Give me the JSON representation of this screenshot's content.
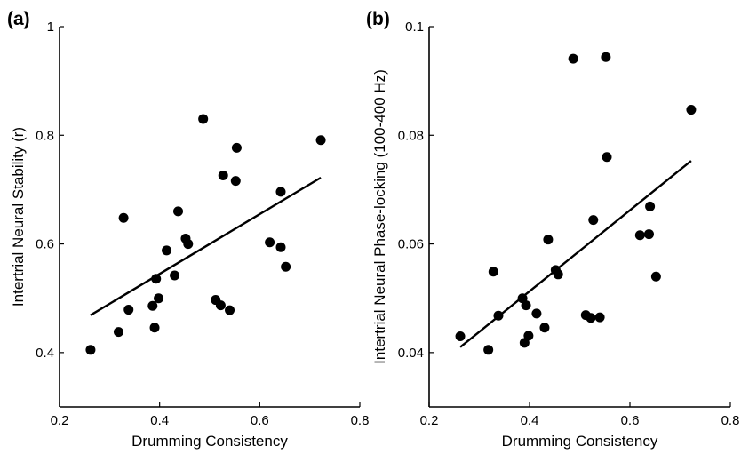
{
  "chart_data": [
    {
      "type": "scatter",
      "panel_label": "(a)",
      "xlabel": "Drumming Consistency",
      "ylabel": "Intertrial Neural Stability (r)",
      "xlim": [
        0.2,
        0.8
      ],
      "ylim": [
        0.3,
        1.0
      ],
      "xticks": [
        "0.2",
        "0.4",
        "0.6",
        "0.8"
      ],
      "xtick_values": [
        0.2,
        0.4,
        0.6,
        0.8
      ],
      "yticks": [
        "0.4",
        "0.6",
        "0.8",
        "1"
      ],
      "ytick_values": [
        0.4,
        0.6,
        0.8,
        1.0
      ],
      "points": [
        [
          0.262,
          0.405
        ],
        [
          0.318,
          0.438
        ],
        [
          0.328,
          0.648
        ],
        [
          0.338,
          0.479
        ],
        [
          0.386,
          0.486
        ],
        [
          0.39,
          0.446
        ],
        [
          0.393,
          0.536
        ],
        [
          0.398,
          0.5
        ],
        [
          0.414,
          0.588
        ],
        [
          0.43,
          0.542
        ],
        [
          0.437,
          0.66
        ],
        [
          0.452,
          0.61
        ],
        [
          0.457,
          0.6
        ],
        [
          0.487,
          0.83
        ],
        [
          0.512,
          0.497
        ],
        [
          0.522,
          0.487
        ],
        [
          0.527,
          0.726
        ],
        [
          0.54,
          0.478
        ],
        [
          0.552,
          0.716
        ],
        [
          0.554,
          0.777
        ],
        [
          0.62,
          0.603
        ],
        [
          0.642,
          0.594
        ],
        [
          0.642,
          0.696
        ],
        [
          0.652,
          0.558
        ],
        [
          0.722,
          0.791
        ]
      ],
      "fit_line": [
        [
          0.262,
          0.469
        ],
        [
          0.722,
          0.722
        ]
      ]
    },
    {
      "type": "scatter",
      "panel_label": "(b)",
      "xlabel": "Drumming Consistency",
      "ylabel": "Intertrial Neural Phase-locking (100-400 Hz)",
      "xlim": [
        0.2,
        0.8
      ],
      "ylim": [
        0.03,
        0.1
      ],
      "xticks": [
        "0.2",
        "0.4",
        "0.6",
        "0.8"
      ],
      "xtick_values": [
        0.2,
        0.4,
        0.6,
        0.8
      ],
      "yticks": [
        "0.04",
        "0.06",
        "0.08",
        "0.1"
      ],
      "ytick_values": [
        0.04,
        0.06,
        0.08,
        0.1
      ],
      "points": [
        [
          0.262,
          0.043
        ],
        [
          0.318,
          0.0405
        ],
        [
          0.328,
          0.0549
        ],
        [
          0.338,
          0.0468
        ],
        [
          0.386,
          0.05
        ],
        [
          0.39,
          0.0418
        ],
        [
          0.393,
          0.0487
        ],
        [
          0.398,
          0.0431
        ],
        [
          0.414,
          0.0472
        ],
        [
          0.43,
          0.0446
        ],
        [
          0.437,
          0.0608
        ],
        [
          0.452,
          0.0552
        ],
        [
          0.457,
          0.0544
        ],
        [
          0.487,
          0.0941
        ],
        [
          0.512,
          0.0469
        ],
        [
          0.522,
          0.0464
        ],
        [
          0.527,
          0.0644
        ],
        [
          0.54,
          0.0465
        ],
        [
          0.552,
          0.0944
        ],
        [
          0.554,
          0.076
        ],
        [
          0.62,
          0.0616
        ],
        [
          0.638,
          0.0618
        ],
        [
          0.64,
          0.0669
        ],
        [
          0.652,
          0.054
        ],
        [
          0.722,
          0.0847
        ]
      ],
      "fit_line": [
        [
          0.262,
          0.041
        ],
        [
          0.722,
          0.0753
        ]
      ]
    }
  ]
}
